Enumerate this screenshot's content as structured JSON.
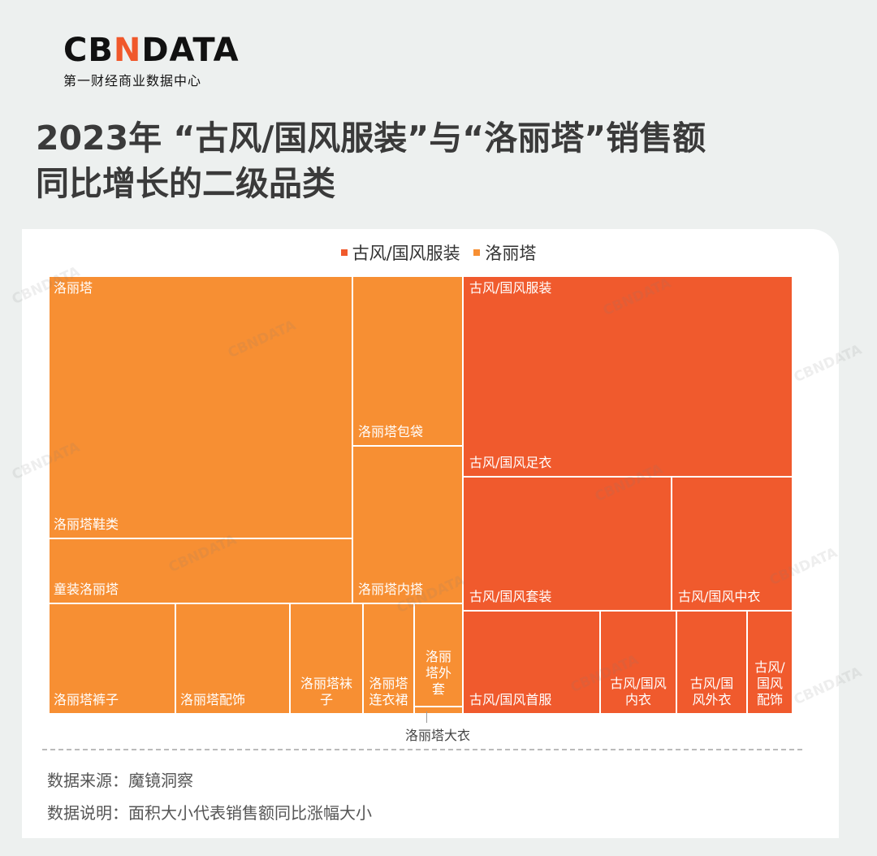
{
  "brand": {
    "logo_pre": "CB",
    "logo_n": "N",
    "logo_post": "DATA",
    "subtitle": "第一财经商业数据中心"
  },
  "title_line1": "2023年 “古风/国风服装”与“洛丽塔”销售额",
  "title_line2": "同比增长的二级品类",
  "watermark": "CBNDATA",
  "colors": {
    "gufeng": "#f05a2d",
    "lolita": "#f78f33"
  },
  "chart_data": {
    "type": "treemap",
    "title": "2023年 “古风/国风服装”与“洛丽塔”销售额同比增长的二级品类",
    "legend": [
      {
        "name": "古风/国风服装",
        "color": "#f05a2d"
      },
      {
        "name": "洛丽塔",
        "color": "#f78f33"
      }
    ],
    "groups": [
      {
        "name": "洛丽塔",
        "children": [
          "洛丽塔鞋类",
          "童装洛丽塔",
          "洛丽塔包袋",
          "洛丽塔内搭",
          "洛丽塔裤子",
          "洛丽塔配饰",
          "洛丽塔袜子",
          "洛丽塔连衣裙",
          "洛丽塔外套",
          "洛丽塔大衣"
        ]
      },
      {
        "name": "古风/国风服装",
        "children": [
          "古风/国风足衣",
          "古风/国风套装",
          "古风/国风中衣",
          "古风/国风首服",
          "古风/国风内衣",
          "古风/国风外衣",
          "古风/国风配饰"
        ]
      }
    ],
    "labels": {
      "group_lolita": "洛丽塔",
      "group_gufeng": "古风/国风服装",
      "lolita_shoes": "洛丽塔鞋类",
      "kids_lolita": "童装洛丽塔",
      "lolita_bags": "洛丽塔包袋",
      "lolita_inner": "洛丽塔内搭",
      "lolita_pants": "洛丽塔裤子",
      "lolita_accessories": "洛丽塔配饰",
      "lolita_socks": "洛丽塔袜\n子",
      "lolita_dress": "洛丽塔\n连衣裙",
      "lolita_jacket": "洛丽\n塔外\n套",
      "lolita_coat": "洛丽塔大衣",
      "gufeng_footwear": "古风/国风足衣",
      "gufeng_set": "古风/国风套装",
      "gufeng_middle": "古风/国风中衣",
      "gufeng_head": "古风/国风首服",
      "gufeng_underwear": "古风/国风\n内衣",
      "gufeng_outer": "古风/国\n风外衣",
      "gufeng_accessories": "古风/\n国风\n配饰"
    }
  },
  "footer": {
    "source": "数据来源：魔镜洞察",
    "note": "数据说明：面积大小代表销售额同比涨幅大小"
  }
}
